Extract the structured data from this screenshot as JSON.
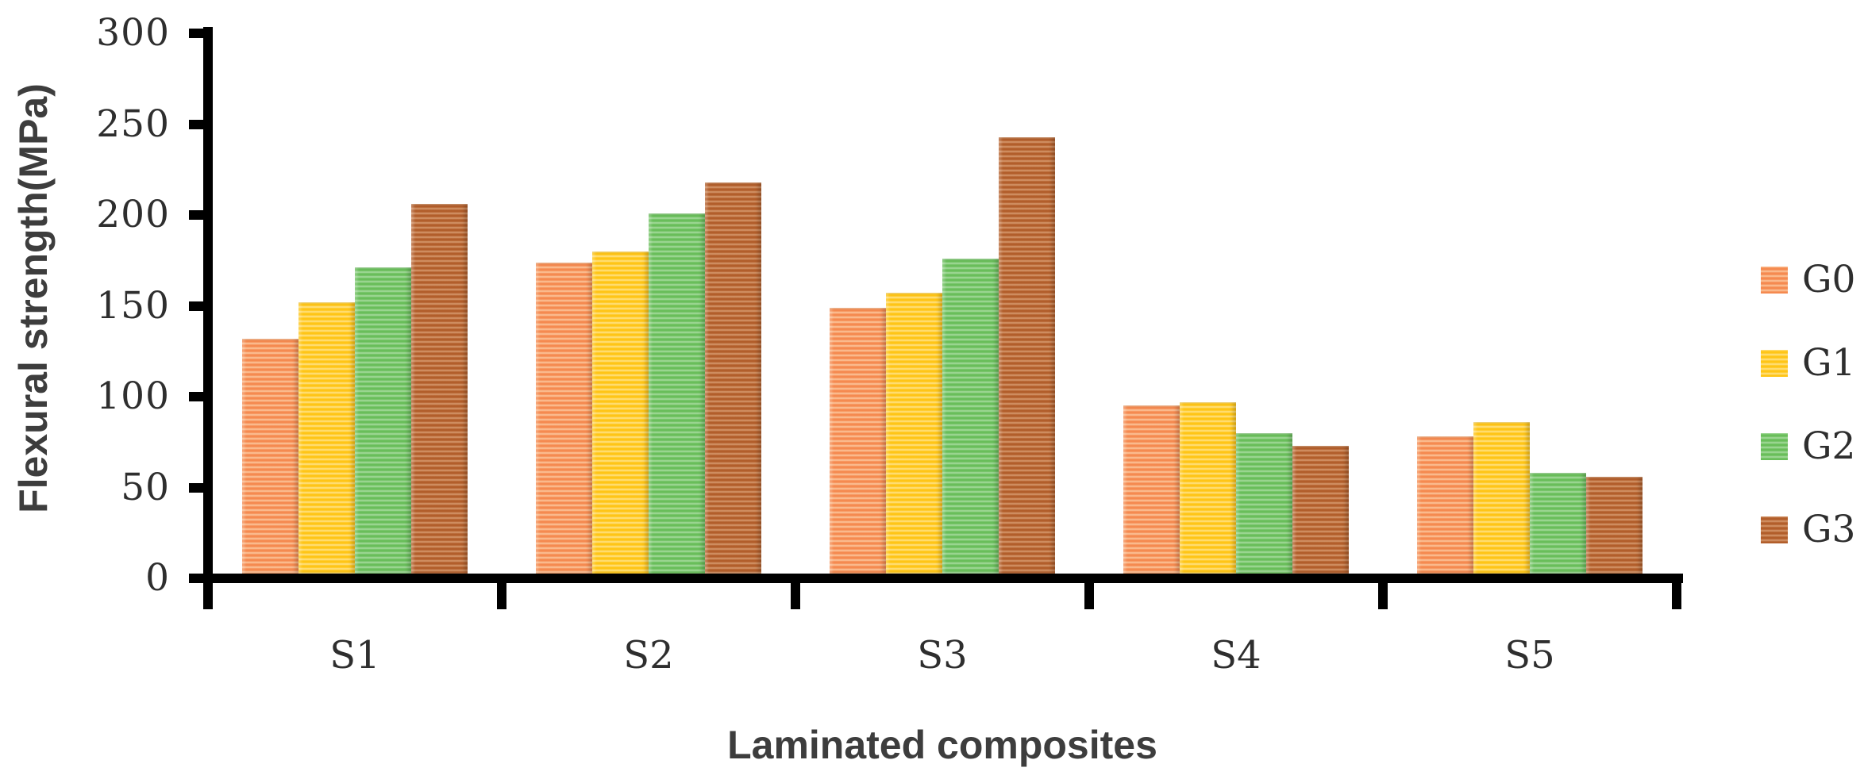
{
  "chart_data": {
    "type": "bar",
    "title": "",
    "xlabel": "Laminated composites",
    "ylabel": "Flexural strength(MPa)",
    "categories": [
      "S1",
      "S2",
      "S3",
      "S4",
      "S5"
    ],
    "series": [
      {
        "name": "G0",
        "color": "#F58A50",
        "stripe_color": "#FCC9A0",
        "values": [
          132,
          174,
          149,
          95,
          78
        ]
      },
      {
        "name": "G1",
        "color": "#FFC516",
        "stripe_color": "#FFE48C",
        "values": [
          152,
          180,
          157,
          97,
          86
        ]
      },
      {
        "name": "G2",
        "color": "#69BE5A",
        "stripe_color": "#A9DCA1",
        "values": [
          171,
          201,
          176,
          80,
          58
        ]
      },
      {
        "name": "G3",
        "color": "#B25E2B",
        "stripe_color": "#D79B70",
        "values": [
          206,
          218,
          243,
          73,
          56
        ]
      }
    ],
    "ylim": [
      0,
      300
    ],
    "yticks": [
      0,
      50,
      100,
      150,
      200,
      250,
      300
    ],
    "grid": false,
    "legend_position": "right",
    "axis_color": "#000000",
    "tick_label_color": "#2e2e2e",
    "axis_title_color": "#3d3d3d",
    "plot_background": "#ffffff",
    "bar_texture": "horizontal-stripes"
  }
}
